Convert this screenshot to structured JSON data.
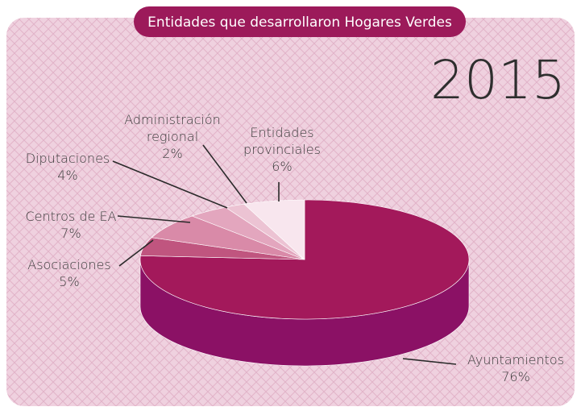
{
  "chart_data": {
    "type": "pie",
    "title": "Entidades que desarrollaron Hogares Verdes",
    "subtitle": "2015",
    "categories": [
      "Ayuntamientos",
      "Asociaciones",
      "Centros de EA",
      "Diputaciones",
      "Administración regional",
      "Entidades provinciales"
    ],
    "values": [
      76,
      5,
      7,
      4,
      2,
      6
    ],
    "value_labels": [
      "76%",
      "5%",
      "7%",
      "4%",
      "2%",
      "6%"
    ],
    "colors": [
      "#a3195b",
      "#c0557f",
      "#d98aa8",
      "#e3a6be",
      "#ecc3d3",
      "#f8e6ee"
    ]
  }
}
